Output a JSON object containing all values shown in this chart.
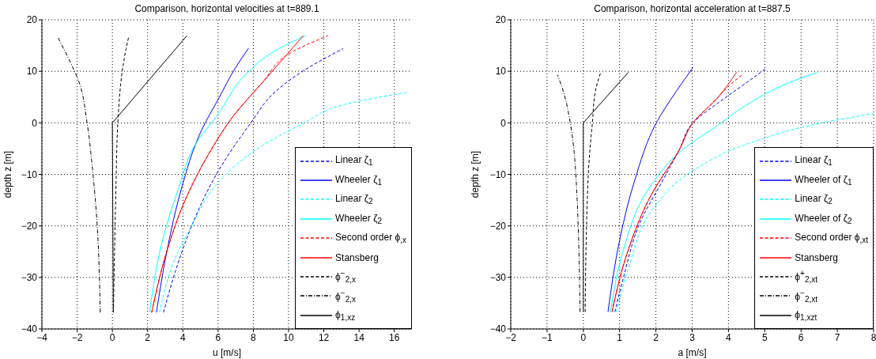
{
  "chart_data": [
    {
      "type": "line",
      "title": "Comparison, horizontal velocities at t=889.1",
      "xlabel": "u [m/s]",
      "ylabel": "depth z [m]",
      "xlim": [
        -4,
        17
      ],
      "ylim": [
        -40,
        20
      ],
      "xticks": [
        -4,
        -2,
        0,
        2,
        4,
        6,
        8,
        10,
        12,
        14,
        16
      ],
      "yticks": [
        -40,
        -30,
        -20,
        -10,
        0,
        10,
        20
      ],
      "grid": true,
      "legend": "bottom right",
      "series": [
        {
          "name": "Linear ζ$_{1}$",
          "color": "#0000ff",
          "line_style": "dashed",
          "x": [
            2.9,
            3.56,
            4.5,
            5.9,
            7.86,
            9.2,
            10.75,
            13.1
          ],
          "values": [
            -36.8,
            -29,
            -20,
            -10,
            0,
            5.9,
            9.9,
            14.4
          ]
        },
        {
          "name": "Wheeler ζ$_{1}$",
          "color": "#0000ff",
          "line_style": "solid",
          "x": [
            2.5,
            3.1,
            3.9,
            5.05,
            6.06,
            6.9,
            7.73
          ],
          "values": [
            -36.8,
            -24.8,
            -13,
            -1.5,
            4.9,
            10.2,
            14.5
          ]
        },
        {
          "name": "Linear ζ$_{2}$",
          "color": "#00ffff",
          "line_style": "dashed",
          "x": [
            2.67,
            3.56,
            4.5,
            5.9,
            7.94,
            10.9,
            13.1,
            16.7
          ],
          "values": [
            -36.8,
            -26.3,
            -20,
            -12,
            -5.7,
            0,
            3.5,
            5.9
          ]
        },
        {
          "name": "Wheeler ζ$_{2}$",
          "color": "#00ffff",
          "line_style": "solid",
          "x": [
            2.11,
            2.78,
            3.72,
            4.81,
            5.9,
            7.63,
            9.19,
            10.95
          ],
          "values": [
            -36.8,
            -23.7,
            -13.1,
            -3.6,
            1.2,
            9.6,
            13.9,
            16.9
          ]
        },
        {
          "name": "Second order ϕ$_{,x}$",
          "color": "#ff0000",
          "line_style": "dashed",
          "x": [
            2.23,
            3.1,
            4.03,
            5.44,
            6.84,
            8.56,
            9.97,
            12.23
          ],
          "values": [
            -36.8,
            -24.8,
            -15.8,
            -6.2,
            1.2,
            8,
            13.3,
            16.9
          ]
        },
        {
          "name": "Stansberg",
          "color": "#ff0000",
          "line_style": "solid",
          "x": [
            2.23,
            3.1,
            4.03,
            5.44,
            6.84,
            8.56,
            9.66,
            10.83
          ],
          "values": [
            -36.8,
            -24.8,
            -15.8,
            -6.2,
            1.2,
            8,
            12.3,
            16.9
          ]
        },
        {
          "name": "ϕ$^{−}$$_{2,x}$",
          "color": "#000000",
          "line_style": "dashed",
          "x": [
            0.06,
            0.2,
            0.31,
            0.59,
            0.78,
            0.94
          ],
          "values": [
            -36.8,
            -13.1,
            0,
            10.7,
            14.4,
            16.9
          ]
        },
        {
          "name": "ϕ$^{−}$$_{2,x}$",
          "color": "#000000",
          "line_style": "dashdot",
          "x": [
            -0.69,
            -0.89,
            -1.13,
            -1.44,
            -1.9,
            -2.38,
            -3.08
          ],
          "values": [
            -36.8,
            -18.4,
            -8.9,
            0.1,
            8,
            11.7,
            16.5
          ]
        },
        {
          "name": "ϕ$_{1,xz}$",
          "color": "#000000",
          "line_style": "solid",
          "x": [
            0.05,
            0,
            4.23
          ],
          "values": [
            -36.8,
            0,
            16.9
          ]
        }
      ]
    },
    {
      "type": "line",
      "title": "Comparison, horizontal acceleration at t=887.5",
      "xlabel": "a [m/s]",
      "ylabel": "depth z [m]",
      "xlim": [
        -2,
        8
      ],
      "ylim": [
        -40,
        20
      ],
      "xticks": [
        -2,
        -1,
        0,
        1,
        2,
        3,
        4,
        5,
        6,
        7,
        8
      ],
      "yticks": [
        -40,
        -30,
        -20,
        -10,
        0,
        10,
        20
      ],
      "grid": true,
      "legend": "bottom right",
      "series": [
        {
          "name": "Linear ζ$_{1}$",
          "color": "#0000ff",
          "line_style": "dashed",
          "x": [
            0.87,
            1.1,
            1.56,
            2.18,
            2.64,
            3.02,
            3.72,
            4.48,
            5.06
          ],
          "values": [
            -36.7,
            -30.2,
            -19.4,
            -11.3,
            -5.3,
            0,
            3.9,
            7.7,
            10.7
          ]
        },
        {
          "name": "Wheeler of ζ$_{1}$",
          "color": "#0000ff",
          "line_style": "solid",
          "x": [
            0.68,
            1.02,
            1.41,
            2.02,
            2.56,
            3.02
          ],
          "values": [
            -36.7,
            -22.1,
            -11.3,
            0.1,
            6.1,
            10.7
          ]
        },
        {
          "name": "Linear ζ$_{2}$",
          "color": "#00ffff",
          "line_style": "dashed",
          "x": [
            0.91,
            1.25,
            1.87,
            2.95,
            4.48,
            6.64,
            8
          ],
          "values": [
            -36.7,
            -28.1,
            -17.2,
            -9.6,
            -4.2,
            0.1,
            1.8
          ]
        },
        {
          "name": "Wheeler of ζ$_{2}$",
          "color": "#00ffff",
          "line_style": "solid",
          "x": [
            0.75,
            1.1,
            1.79,
            2.72,
            3.72,
            4.48,
            5.64,
            6.45
          ],
          "values": [
            -36.7,
            -24.8,
            -12.9,
            -5.3,
            -0.4,
            3.4,
            7.7,
            9.8
          ]
        },
        {
          "name": "Second order ϕ$_{,xt}$",
          "color": "#ff0000",
          "line_style": "dashed",
          "x": [
            0.79,
            1.18,
            1.87,
            2.64,
            3.02,
            3.56,
            4.1,
            4.41
          ],
          "values": [
            -36.7,
            -25.9,
            -14,
            -5.3,
            0,
            3.9,
            7.7,
            9.5
          ]
        },
        {
          "name": "Stansberg",
          "color": "#ff0000",
          "line_style": "solid",
          "x": [
            0.79,
            1.18,
            1.87,
            2.64,
            3.02,
            3.72,
            4.22
          ],
          "values": [
            -36.7,
            -25.9,
            -14,
            -5.3,
            0,
            5,
            9.8
          ]
        },
        {
          "name": "ϕ$^{+}$$_{2,xt}$",
          "color": "#000000",
          "line_style": "dashed",
          "x": [
            0.05,
            0.14,
            0.25,
            0.33,
            0.48
          ],
          "values": [
            -36.7,
            -9.6,
            0,
            6.1,
            9.8
          ]
        },
        {
          "name": "ϕ$^{−}$$_{2,xt}$",
          "color": "#000000",
          "line_style": "dashdot",
          "x": [
            -0.09,
            -0.21,
            -0.36,
            -0.55,
            -0.71
          ],
          "values": [
            -36.7,
            -9.6,
            0,
            6.1,
            9.3
          ]
        },
        {
          "name": "ϕ$_{1,xzt}$",
          "color": "#000000",
          "line_style": "solid",
          "x": [
            0,
            0,
            1.24
          ],
          "values": [
            -36.7,
            0,
            9.8
          ]
        }
      ]
    }
  ]
}
